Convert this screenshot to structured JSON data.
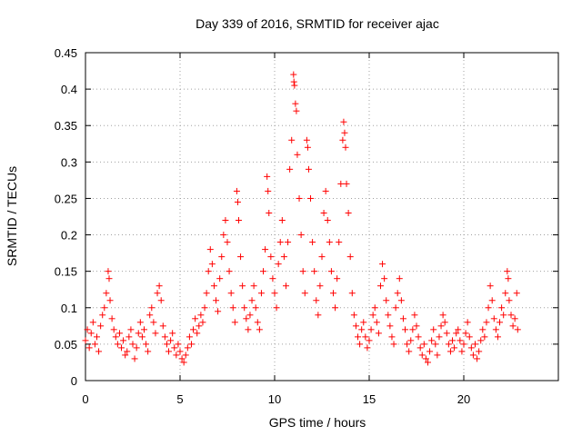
{
  "chart_data": {
    "type": "scatter",
    "title": "Day 339 of 2016, SRMTID for receiver ajac",
    "xlabel": "GPS time / hours",
    "ylabel": "SRMTID / TECUs",
    "xlim": [
      0,
      25
    ],
    "ylim": [
      0,
      0.45
    ],
    "xticks": [
      0,
      5,
      10,
      15,
      20
    ],
    "xtick_labels": [
      "0",
      "5",
      "10",
      "15",
      "20"
    ],
    "yticks": [
      0,
      0.05,
      0.1,
      0.15,
      0.2,
      0.25,
      0.3,
      0.35,
      0.4,
      0.45
    ],
    "ytick_labels": [
      "0",
      "0.05",
      "0.1",
      "0.15",
      "0.2",
      "0.25",
      "0.3",
      "0.35",
      "0.4",
      "0.45"
    ],
    "grid": true,
    "marker": "plus",
    "series": [
      {
        "name": "SRMTID",
        "color": "#ff0000",
        "points": [
          [
            0.0,
            0.055
          ],
          [
            0.1,
            0.07
          ],
          [
            0.2,
            0.045
          ],
          [
            0.3,
            0.065
          ],
          [
            0.4,
            0.08
          ],
          [
            0.5,
            0.05
          ],
          [
            0.6,
            0.06
          ],
          [
            0.7,
            0.04
          ],
          [
            0.8,
            0.075
          ],
          [
            0.9,
            0.09
          ],
          [
            1.0,
            0.1
          ],
          [
            1.1,
            0.12
          ],
          [
            1.2,
            0.15
          ],
          [
            1.25,
            0.14
          ],
          [
            1.3,
            0.11
          ],
          [
            1.4,
            0.085
          ],
          [
            1.5,
            0.07
          ],
          [
            1.6,
            0.06
          ],
          [
            1.7,
            0.05
          ],
          [
            1.8,
            0.065
          ],
          [
            1.9,
            0.045
          ],
          [
            2.0,
            0.055
          ],
          [
            2.1,
            0.035
          ],
          [
            2.2,
            0.04
          ],
          [
            2.3,
            0.06
          ],
          [
            2.4,
            0.07
          ],
          [
            2.5,
            0.05
          ],
          [
            2.6,
            0.03
          ],
          [
            2.7,
            0.045
          ],
          [
            2.8,
            0.065
          ],
          [
            2.9,
            0.08
          ],
          [
            3.0,
            0.06
          ],
          [
            3.1,
            0.07
          ],
          [
            3.2,
            0.05
          ],
          [
            3.3,
            0.04
          ],
          [
            3.4,
            0.09
          ],
          [
            3.5,
            0.1
          ],
          [
            3.6,
            0.08
          ],
          [
            3.7,
            0.065
          ],
          [
            3.8,
            0.12
          ],
          [
            3.9,
            0.13
          ],
          [
            4.0,
            0.11
          ],
          [
            4.1,
            0.075
          ],
          [
            4.2,
            0.06
          ],
          [
            4.3,
            0.05
          ],
          [
            4.4,
            0.04
          ],
          [
            4.5,
            0.055
          ],
          [
            4.6,
            0.065
          ],
          [
            4.7,
            0.045
          ],
          [
            4.8,
            0.035
          ],
          [
            4.9,
            0.05
          ],
          [
            5.0,
            0.04
          ],
          [
            5.1,
            0.03
          ],
          [
            5.2,
            0.025
          ],
          [
            5.3,
            0.035
          ],
          [
            5.4,
            0.045
          ],
          [
            5.5,
            0.06
          ],
          [
            5.6,
            0.05
          ],
          [
            5.7,
            0.07
          ],
          [
            5.8,
            0.085
          ],
          [
            5.9,
            0.065
          ],
          [
            6.0,
            0.075
          ],
          [
            6.1,
            0.09
          ],
          [
            6.2,
            0.08
          ],
          [
            6.3,
            0.1
          ],
          [
            6.4,
            0.12
          ],
          [
            6.5,
            0.15
          ],
          [
            6.6,
            0.18
          ],
          [
            6.7,
            0.16
          ],
          [
            6.8,
            0.13
          ],
          [
            6.9,
            0.11
          ],
          [
            7.0,
            0.095
          ],
          [
            7.1,
            0.14
          ],
          [
            7.2,
            0.17
          ],
          [
            7.3,
            0.2
          ],
          [
            7.4,
            0.22
          ],
          [
            7.5,
            0.19
          ],
          [
            7.6,
            0.15
          ],
          [
            7.7,
            0.12
          ],
          [
            7.8,
            0.1
          ],
          [
            7.9,
            0.08
          ],
          [
            8.0,
            0.26
          ],
          [
            8.05,
            0.245
          ],
          [
            8.1,
            0.22
          ],
          [
            8.2,
            0.17
          ],
          [
            8.3,
            0.13
          ],
          [
            8.4,
            0.1
          ],
          [
            8.5,
            0.085
          ],
          [
            8.6,
            0.07
          ],
          [
            8.7,
            0.09
          ],
          [
            8.8,
            0.11
          ],
          [
            8.9,
            0.13
          ],
          [
            9.0,
            0.1
          ],
          [
            9.1,
            0.08
          ],
          [
            9.2,
            0.07
          ],
          [
            9.3,
            0.12
          ],
          [
            9.4,
            0.15
          ],
          [
            9.5,
            0.18
          ],
          [
            9.6,
            0.28
          ],
          [
            9.65,
            0.26
          ],
          [
            9.7,
            0.23
          ],
          [
            9.8,
            0.17
          ],
          [
            9.9,
            0.14
          ],
          [
            10.0,
            0.12
          ],
          [
            10.1,
            0.1
          ],
          [
            10.2,
            0.16
          ],
          [
            10.3,
            0.19
          ],
          [
            10.4,
            0.22
          ],
          [
            10.5,
            0.17
          ],
          [
            10.6,
            0.13
          ],
          [
            10.7,
            0.19
          ],
          [
            10.8,
            0.29
          ],
          [
            10.9,
            0.33
          ],
          [
            11.0,
            0.42
          ],
          [
            11.02,
            0.41
          ],
          [
            11.05,
            0.405
          ],
          [
            11.1,
            0.38
          ],
          [
            11.15,
            0.37
          ],
          [
            11.2,
            0.31
          ],
          [
            11.3,
            0.25
          ],
          [
            11.4,
            0.2
          ],
          [
            11.5,
            0.15
          ],
          [
            11.6,
            0.12
          ],
          [
            11.7,
            0.33
          ],
          [
            11.75,
            0.32
          ],
          [
            11.8,
            0.29
          ],
          [
            11.9,
            0.25
          ],
          [
            12.0,
            0.19
          ],
          [
            12.1,
            0.15
          ],
          [
            12.2,
            0.11
          ],
          [
            12.3,
            0.09
          ],
          [
            12.4,
            0.13
          ],
          [
            12.5,
            0.17
          ],
          [
            12.6,
            0.23
          ],
          [
            12.7,
            0.26
          ],
          [
            12.8,
            0.22
          ],
          [
            12.9,
            0.19
          ],
          [
            13.0,
            0.15
          ],
          [
            13.1,
            0.12
          ],
          [
            13.2,
            0.1
          ],
          [
            13.3,
            0.14
          ],
          [
            13.4,
            0.19
          ],
          [
            13.5,
            0.27
          ],
          [
            13.6,
            0.33
          ],
          [
            13.65,
            0.355
          ],
          [
            13.7,
            0.34
          ],
          [
            13.75,
            0.32
          ],
          [
            13.8,
            0.27
          ],
          [
            13.9,
            0.23
          ],
          [
            14.0,
            0.17
          ],
          [
            14.1,
            0.12
          ],
          [
            14.2,
            0.09
          ],
          [
            14.3,
            0.075
          ],
          [
            14.4,
            0.06
          ],
          [
            14.5,
            0.05
          ],
          [
            14.6,
            0.07
          ],
          [
            14.7,
            0.08
          ],
          [
            14.8,
            0.06
          ],
          [
            14.9,
            0.045
          ],
          [
            15.0,
            0.055
          ],
          [
            15.1,
            0.07
          ],
          [
            15.2,
            0.09
          ],
          [
            15.3,
            0.1
          ],
          [
            15.4,
            0.08
          ],
          [
            15.5,
            0.065
          ],
          [
            15.6,
            0.13
          ],
          [
            15.7,
            0.16
          ],
          [
            15.8,
            0.14
          ],
          [
            15.9,
            0.11
          ],
          [
            16.0,
            0.09
          ],
          [
            16.1,
            0.075
          ],
          [
            16.2,
            0.06
          ],
          [
            16.3,
            0.05
          ],
          [
            16.4,
            0.1
          ],
          [
            16.5,
            0.12
          ],
          [
            16.6,
            0.14
          ],
          [
            16.7,
            0.11
          ],
          [
            16.8,
            0.085
          ],
          [
            16.9,
            0.07
          ],
          [
            17.0,
            0.05
          ],
          [
            17.1,
            0.04
          ],
          [
            17.2,
            0.055
          ],
          [
            17.3,
            0.07
          ],
          [
            17.4,
            0.09
          ],
          [
            17.5,
            0.075
          ],
          [
            17.6,
            0.06
          ],
          [
            17.7,
            0.045
          ],
          [
            17.8,
            0.035
          ],
          [
            17.9,
            0.05
          ],
          [
            18.0,
            0.03
          ],
          [
            18.1,
            0.025
          ],
          [
            18.2,
            0.04
          ],
          [
            18.3,
            0.055
          ],
          [
            18.4,
            0.07
          ],
          [
            18.5,
            0.05
          ],
          [
            18.6,
            0.035
          ],
          [
            18.7,
            0.06
          ],
          [
            18.8,
            0.075
          ],
          [
            18.9,
            0.09
          ],
          [
            19.0,
            0.08
          ],
          [
            19.1,
            0.065
          ],
          [
            19.2,
            0.05
          ],
          [
            19.3,
            0.04
          ],
          [
            19.4,
            0.055
          ],
          [
            19.5,
            0.045
          ],
          [
            19.6,
            0.065
          ],
          [
            19.7,
            0.07
          ],
          [
            19.8,
            0.055
          ],
          [
            19.9,
            0.04
          ],
          [
            20.0,
            0.05
          ],
          [
            20.1,
            0.065
          ],
          [
            20.2,
            0.08
          ],
          [
            20.3,
            0.06
          ],
          [
            20.4,
            0.045
          ],
          [
            20.5,
            0.035
          ],
          [
            20.6,
            0.05
          ],
          [
            20.7,
            0.03
          ],
          [
            20.8,
            0.04
          ],
          [
            20.9,
            0.055
          ],
          [
            21.0,
            0.07
          ],
          [
            21.1,
            0.06
          ],
          [
            21.2,
            0.08
          ],
          [
            21.3,
            0.1
          ],
          [
            21.4,
            0.13
          ],
          [
            21.5,
            0.11
          ],
          [
            21.6,
            0.085
          ],
          [
            21.7,
            0.07
          ],
          [
            21.8,
            0.06
          ],
          [
            21.9,
            0.08
          ],
          [
            22.0,
            0.1
          ],
          [
            22.1,
            0.09
          ],
          [
            22.2,
            0.12
          ],
          [
            22.3,
            0.15
          ],
          [
            22.35,
            0.14
          ],
          [
            22.4,
            0.11
          ],
          [
            22.5,
            0.09
          ],
          [
            22.6,
            0.075
          ],
          [
            22.7,
            0.085
          ],
          [
            22.8,
            0.12
          ],
          [
            22.85,
            0.07
          ]
        ]
      }
    ]
  }
}
